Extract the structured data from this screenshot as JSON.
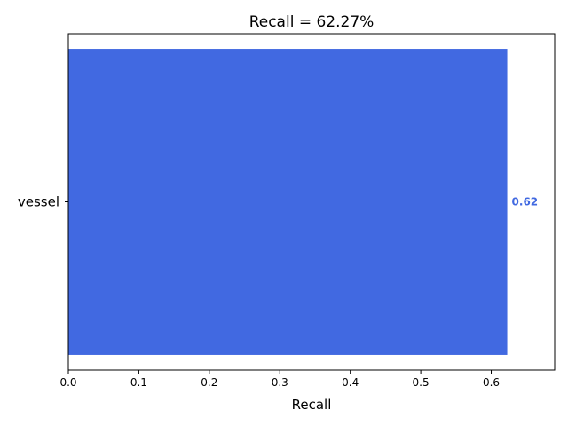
{
  "chart_data": {
    "type": "bar",
    "orientation": "horizontal",
    "title": "Recall = 62.27%",
    "xlabel": "Recall",
    "ylabel": "",
    "categories": [
      "vessel"
    ],
    "values": [
      0.6227
    ],
    "data_labels": [
      "0.62"
    ],
    "xlim": [
      0,
      0.69
    ],
    "xticks": [
      0.0,
      0.1,
      0.2,
      0.3,
      0.4,
      0.5,
      0.6
    ],
    "xtick_labels": [
      "0.0",
      "0.1",
      "0.2",
      "0.3",
      "0.4",
      "0.5",
      "0.6"
    ],
    "grid": false,
    "bar_color": "#4169e1",
    "label_color": "#4169e1"
  }
}
